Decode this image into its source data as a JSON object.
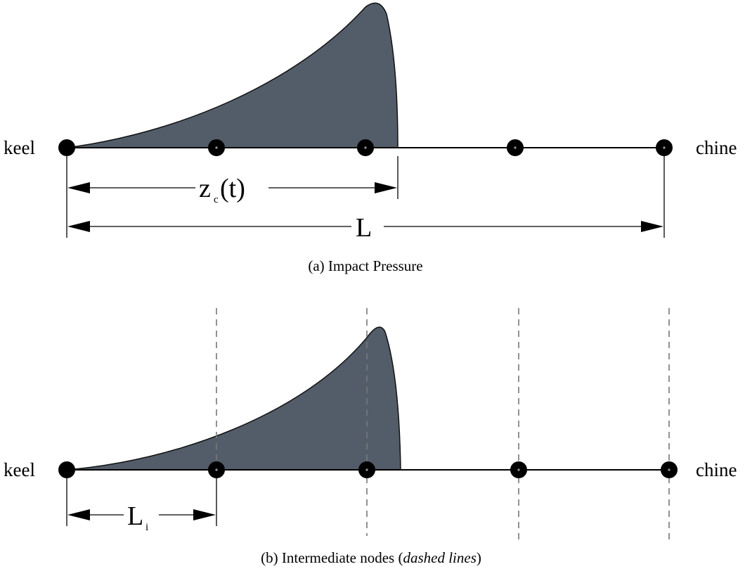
{
  "panel_a": {
    "left_label": "keel",
    "right_label": "chine",
    "dim_zc_main": "z",
    "dim_zc_sub": "c",
    "dim_zc_tail": "(t)",
    "dim_L": "L",
    "caption": "(a) Impact Pressure"
  },
  "panel_b": {
    "left_label": "keel",
    "right_label": "chine",
    "dim_Li_main": "L",
    "dim_Li_sub": "i",
    "caption_prefix": "(b) Intermediate nodes (",
    "caption_italic": "dashed lines",
    "caption_suffix": ")"
  },
  "colors": {
    "pressure_fill": "#535d69",
    "node": "#000000",
    "dashed": "#777777"
  }
}
